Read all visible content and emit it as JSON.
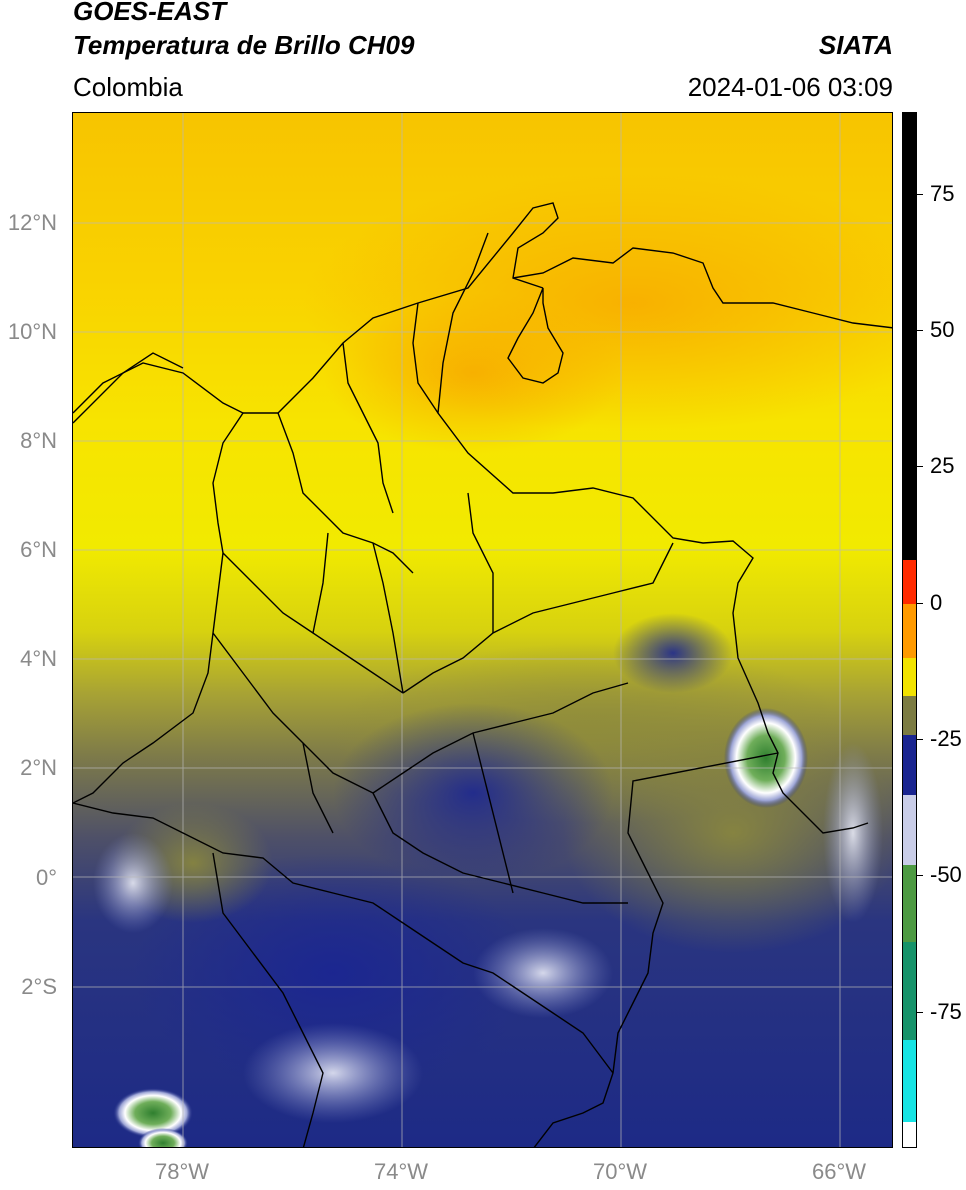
{
  "header": {
    "satellite": "GOES-EAST",
    "product": "Temperatura de Brillo CH09",
    "source": "SIATA",
    "region": "Colombia",
    "timestamp": "2024-01-06 03:09"
  },
  "map": {
    "lat_range": [
      -5,
      14
    ],
    "lon_range": [
      -80,
      -65
    ],
    "lat_labels": [
      "12°N",
      "10°N",
      "8°N",
      "6°N",
      "4°N",
      "2°N",
      "0°",
      "2°S"
    ],
    "lon_labels": [
      "78°W",
      "74°W",
      "70°W",
      "66°W"
    ],
    "colors": {
      "warm_orange": "#f7b000",
      "yellow": "#f6ea00",
      "olive": "#8b8a3a",
      "navy": "#1c2a8a",
      "deep_convection": "#ffffff",
      "green_core": "#3a8f3a",
      "borders": "#000000"
    }
  },
  "colorbar": {
    "label_min": -100,
    "label_max": 90,
    "ticks": [
      "75",
      "50",
      "25",
      "0",
      "-25",
      "-50",
      "-75"
    ],
    "segments": [
      {
        "from": 90,
        "to": 8,
        "color": "#000000"
      },
      {
        "from": 8,
        "to": 0,
        "color": "#ff2a00"
      },
      {
        "from": 0,
        "to": -10,
        "color": "#ff9a00"
      },
      {
        "from": -10,
        "to": -17,
        "color": "#f2e300"
      },
      {
        "from": -17,
        "to": -24,
        "color": "#7c7c42"
      },
      {
        "from": -24,
        "to": -35,
        "color": "#1a2590"
      },
      {
        "from": -35,
        "to": -48,
        "color": "#c9cde8"
      },
      {
        "from": -48,
        "to": -62,
        "color": "#4d9a42"
      },
      {
        "from": -62,
        "to": -80,
        "color": "#16936a"
      },
      {
        "from": -80,
        "to": -95,
        "color": "#16e4e4"
      },
      {
        "from": -95,
        "to": -100,
        "color": "#ffffff"
      }
    ]
  }
}
